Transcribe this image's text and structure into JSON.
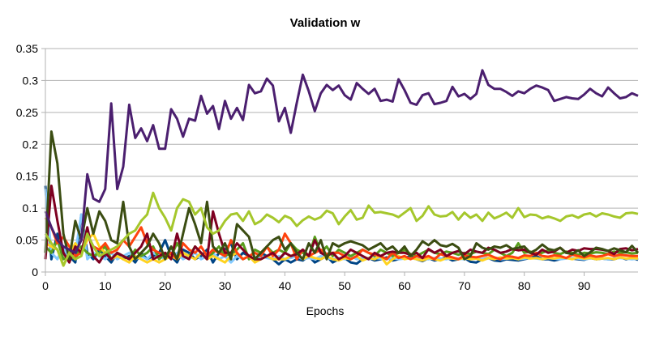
{
  "chart_data": {
    "type": "line",
    "title": "Validation w",
    "xlabel": "Epochs",
    "ylabel": "",
    "xlim": [
      0,
      99
    ],
    "ylim": [
      0,
      0.35
    ],
    "x_ticks": [
      "0",
      "10",
      "20",
      "30",
      "40",
      "50",
      "60",
      "70",
      "80",
      "90"
    ],
    "x_tick_values": [
      0,
      10,
      20,
      30,
      40,
      50,
      60,
      70,
      80,
      90
    ],
    "y_ticks": [
      "0",
      "0.05",
      "0.1",
      "0.15",
      "0.2",
      "0.25",
      "0.3",
      "0.35"
    ],
    "y_tick_values": [
      0,
      0.05,
      0.1,
      0.15,
      0.2,
      0.25,
      0.3,
      0.35
    ],
    "grid": "horizontal",
    "legend": "none",
    "series": [
      {
        "color": "#4b1f6f",
        "values": [
          0.095,
          0.07,
          0.05,
          0.04,
          0.035,
          0.03,
          0.05,
          0.153,
          0.115,
          0.11,
          0.13,
          0.264,
          0.13,
          0.165,
          0.262,
          0.21,
          0.225,
          0.205,
          0.23,
          0.193,
          0.193,
          0.255,
          0.24,
          0.212,
          0.24,
          0.237,
          0.276,
          0.248,
          0.26,
          0.224,
          0.268,
          0.24,
          0.257,
          0.238,
          0.293,
          0.28,
          0.283,
          0.303,
          0.292,
          0.236,
          0.257,
          0.218,
          0.265,
          0.309,
          0.283,
          0.252,
          0.28,
          0.293,
          0.285,
          0.292,
          0.277,
          0.27,
          0.296,
          0.287,
          0.279,
          0.287,
          0.268,
          0.27,
          0.267,
          0.302,
          0.285,
          0.265,
          0.262,
          0.277,
          0.28,
          0.263,
          0.265,
          0.268,
          0.29,
          0.275,
          0.279,
          0.271,
          0.279,
          0.316,
          0.293,
          0.287,
          0.287,
          0.282,
          0.276,
          0.283,
          0.28,
          0.287,
          0.292,
          0.289,
          0.285,
          0.268,
          0.271,
          0.274,
          0.272,
          0.271,
          0.278,
          0.287,
          0.28,
          0.275,
          0.289,
          0.28,
          0.272,
          0.274,
          0.28,
          0.276
        ]
      },
      {
        "color": "#a5c72c",
        "values": [
          0.06,
          0.045,
          0.035,
          0.01,
          0.03,
          0.02,
          0.025,
          0.06,
          0.04,
          0.025,
          0.03,
          0.035,
          0.04,
          0.05,
          0.06,
          0.065,
          0.08,
          0.09,
          0.124,
          0.1,
          0.085,
          0.065,
          0.1,
          0.114,
          0.11,
          0.09,
          0.1,
          0.07,
          0.06,
          0.065,
          0.08,
          0.09,
          0.092,
          0.08,
          0.095,
          0.075,
          0.08,
          0.09,
          0.085,
          0.078,
          0.088,
          0.084,
          0.072,
          0.081,
          0.087,
          0.082,
          0.086,
          0.096,
          0.092,
          0.075,
          0.087,
          0.097,
          0.082,
          0.085,
          0.104,
          0.093,
          0.094,
          0.092,
          0.09,
          0.086,
          0.093,
          0.1,
          0.08,
          0.088,
          0.103,
          0.09,
          0.087,
          0.088,
          0.094,
          0.082,
          0.093,
          0.085,
          0.09,
          0.08,
          0.093,
          0.084,
          0.088,
          0.093,
          0.085,
          0.1,
          0.086,
          0.09,
          0.089,
          0.084,
          0.087,
          0.084,
          0.08,
          0.087,
          0.089,
          0.085,
          0.09,
          0.092,
          0.087,
          0.092,
          0.09,
          0.087,
          0.085,
          0.092,
          0.093,
          0.091
        ]
      },
      {
        "color": "#3b4d12",
        "values": [
          0.03,
          0.22,
          0.17,
          0.06,
          0.02,
          0.08,
          0.05,
          0.1,
          0.06,
          0.095,
          0.08,
          0.05,
          0.045,
          0.11,
          0.04,
          0.02,
          0.03,
          0.04,
          0.06,
          0.045,
          0.02,
          0.04,
          0.02,
          0.06,
          0.1,
          0.075,
          0.045,
          0.11,
          0.04,
          0.03,
          0.045,
          0.02,
          0.075,
          0.065,
          0.055,
          0.02,
          0.03,
          0.04,
          0.05,
          0.055,
          0.035,
          0.045,
          0.03,
          0.02,
          0.045,
          0.03,
          0.05,
          0.02,
          0.045,
          0.04,
          0.045,
          0.048,
          0.045,
          0.042,
          0.035,
          0.04,
          0.045,
          0.035,
          0.04,
          0.03,
          0.04,
          0.025,
          0.035,
          0.048,
          0.042,
          0.05,
          0.042,
          0.04,
          0.044,
          0.038,
          0.02,
          0.025,
          0.045,
          0.038,
          0.035,
          0.04,
          0.038,
          0.042,
          0.036,
          0.038,
          0.04,
          0.03,
          0.035,
          0.043,
          0.036,
          0.034,
          0.038,
          0.03,
          0.028,
          0.034,
          0.025,
          0.031,
          0.038,
          0.036,
          0.033,
          0.037,
          0.034,
          0.031,
          0.041,
          0.03
        ]
      },
      {
        "color": "#7e0021",
        "values": [
          0.02,
          0.135,
          0.08,
          0.03,
          0.015,
          0.04,
          0.03,
          0.07,
          0.025,
          0.015,
          0.03,
          0.02,
          0.03,
          0.025,
          0.02,
          0.03,
          0.04,
          0.06,
          0.02,
          0.025,
          0.03,
          0.02,
          0.06,
          0.025,
          0.02,
          0.04,
          0.03,
          0.02,
          0.095,
          0.06,
          0.03,
          0.03,
          0.045,
          0.035,
          0.025,
          0.02,
          0.02,
          0.025,
          0.03,
          0.02,
          0.03,
          0.025,
          0.028,
          0.035,
          0.025,
          0.05,
          0.03,
          0.025,
          0.03,
          0.02,
          0.025,
          0.035,
          0.03,
          0.025,
          0.02,
          0.03,
          0.025,
          0.03,
          0.032,
          0.03,
          0.03,
          0.027,
          0.03,
          0.022,
          0.036,
          0.03,
          0.035,
          0.025,
          0.03,
          0.033,
          0.028,
          0.035,
          0.032,
          0.03,
          0.038,
          0.035,
          0.03,
          0.032,
          0.036,
          0.034,
          0.035,
          0.03,
          0.027,
          0.035,
          0.03,
          0.032,
          0.038,
          0.03,
          0.035,
          0.033,
          0.037,
          0.036,
          0.036,
          0.035,
          0.033,
          0.028,
          0.036,
          0.037,
          0.034,
          0.036
        ]
      },
      {
        "color": "#ff420e",
        "values": [
          0.085,
          0.07,
          0.045,
          0.055,
          0.04,
          0.025,
          0.03,
          0.06,
          0.04,
          0.035,
          0.045,
          0.03,
          0.035,
          0.05,
          0.04,
          0.055,
          0.07,
          0.045,
          0.035,
          0.03,
          0.025,
          0.03,
          0.02,
          0.045,
          0.035,
          0.03,
          0.04,
          0.025,
          0.035,
          0.03,
          0.025,
          0.05,
          0.03,
          0.02,
          0.025,
          0.03,
          0.025,
          0.04,
          0.025,
          0.035,
          0.06,
          0.045,
          0.02,
          0.035,
          0.025,
          0.03,
          0.035,
          0.028,
          0.03,
          0.03,
          0.025,
          0.02,
          0.025,
          0.035,
          0.03,
          0.027,
          0.025,
          0.02,
          0.03,
          0.022,
          0.025,
          0.02,
          0.025,
          0.022,
          0.025,
          0.02,
          0.028,
          0.025,
          0.023,
          0.02,
          0.026,
          0.024,
          0.023,
          0.025,
          0.027,
          0.023,
          0.02,
          0.025,
          0.024,
          0.022,
          0.026,
          0.025,
          0.03,
          0.025,
          0.024,
          0.026,
          0.025,
          0.022,
          0.027,
          0.025,
          0.023,
          0.026,
          0.024,
          0.025,
          0.028,
          0.025,
          0.027,
          0.026,
          0.025,
          0.025
        ]
      },
      {
        "color": "#ffd320",
        "values": [
          0.045,
          0.04,
          0.035,
          0.01,
          0.03,
          0.045,
          0.03,
          0.05,
          0.06,
          0.04,
          0.03,
          0.02,
          0.025,
          0.02,
          0.015,
          0.025,
          0.02,
          0.015,
          0.02,
          0.015,
          0.02,
          0.025,
          0.02,
          0.03,
          0.025,
          0.02,
          0.03,
          0.02,
          0.025,
          0.02,
          0.015,
          0.025,
          0.03,
          0.02,
          0.025,
          0.015,
          0.02,
          0.025,
          0.02,
          0.02,
          0.02,
          0.025,
          0.03,
          0.02,
          0.025,
          0.022,
          0.02,
          0.025,
          0.02,
          0.018,
          0.022,
          0.02,
          0.025,
          0.018,
          0.022,
          0.02,
          0.025,
          0.012,
          0.02,
          0.025,
          0.02,
          0.022,
          0.02,
          0.018,
          0.022,
          0.02,
          0.018,
          0.022,
          0.021,
          0.02,
          0.022,
          0.02,
          0.021,
          0.018,
          0.022,
          0.02,
          0.023,
          0.021,
          0.022,
          0.02,
          0.023,
          0.021,
          0.022,
          0.02,
          0.022,
          0.021,
          0.023,
          0.022,
          0.02,
          0.023,
          0.021,
          0.022,
          0.02,
          0.021,
          0.022,
          0.02,
          0.023,
          0.021,
          0.022,
          0.021
        ]
      },
      {
        "color": "#579d1c",
        "values": [
          0.04,
          0.03,
          0.05,
          0.02,
          0.025,
          0.02,
          0.04,
          0.03,
          0.025,
          0.03,
          0.04,
          0.02,
          0.03,
          0.025,
          0.02,
          0.035,
          0.025,
          0.03,
          0.04,
          0.02,
          0.03,
          0.025,
          0.045,
          0.03,
          0.025,
          0.04,
          0.03,
          0.02,
          0.03,
          0.04,
          0.025,
          0.03,
          0.035,
          0.045,
          0.02,
          0.035,
          0.03,
          0.04,
          0.03,
          0.035,
          0.03,
          0.045,
          0.035,
          0.03,
          0.025,
          0.055,
          0.03,
          0.04,
          0.025,
          0.035,
          0.03,
          0.025,
          0.03,
          0.035,
          0.03,
          0.025,
          0.035,
          0.03,
          0.025,
          0.03,
          0.035,
          0.028,
          0.025,
          0.03,
          0.035,
          0.03,
          0.028,
          0.032,
          0.03,
          0.027,
          0.03,
          0.028,
          0.032,
          0.03,
          0.028,
          0.035,
          0.03,
          0.025,
          0.03,
          0.045,
          0.03,
          0.032,
          0.028,
          0.03,
          0.034,
          0.03,
          0.028,
          0.032,
          0.03,
          0.027,
          0.03,
          0.029,
          0.031,
          0.03,
          0.028,
          0.032,
          0.03,
          0.031,
          0.029,
          0.03
        ]
      },
      {
        "color": "#83caff",
        "values": [
          0.13,
          0.03,
          0.02,
          0.04,
          0.02,
          0.03,
          0.09,
          0.02,
          0.03,
          0.025,
          0.02,
          0.03,
          0.02,
          0.025,
          0.03,
          0.02,
          0.025,
          0.02,
          0.03,
          0.025,
          0.02,
          0.025,
          0.03,
          0.02,
          0.025,
          0.03,
          0.02,
          0.025,
          0.03,
          0.02,
          0.025,
          0.015,
          0.025,
          0.02,
          0.025,
          0.02,
          0.025,
          0.022,
          0.02,
          0.025,
          0.02,
          0.022,
          0.025,
          0.02,
          0.022,
          0.02,
          0.025,
          0.022,
          0.02,
          0.022,
          0.02,
          0.025,
          0.02,
          0.022,
          0.02,
          0.022,
          0.021,
          0.02,
          0.022,
          0.02,
          0.021,
          0.022,
          0.02,
          0.021,
          0.02,
          0.022,
          0.021,
          0.02,
          0.022,
          0.021,
          0.02,
          0.022,
          0.021,
          0.02,
          0.021,
          0.022,
          0.02,
          0.021,
          0.022,
          0.02,
          0.021,
          0.022,
          0.021,
          0.02,
          0.022,
          0.021,
          0.02,
          0.021,
          0.022,
          0.021,
          0.02,
          0.021,
          0.022,
          0.021,
          0.02,
          0.021,
          0.022,
          0.021,
          0.02,
          0.021
        ]
      },
      {
        "color": "#004586",
        "values": [
          0.135,
          0.02,
          0.06,
          0.03,
          0.025,
          0.015,
          0.09,
          0.03,
          0.02,
          0.035,
          0.025,
          0.015,
          0.03,
          0.02,
          0.025,
          0.015,
          0.03,
          0.02,
          0.025,
          0.03,
          0.05,
          0.025,
          0.015,
          0.035,
          0.03,
          0.02,
          0.025,
          0.035,
          0.015,
          0.03,
          0.035,
          0.045,
          0.02,
          0.03,
          0.025,
          0.02,
          0.03,
          0.025,
          0.02,
          0.012,
          0.02,
          0.015,
          0.02,
          0.018,
          0.025,
          0.015,
          0.02,
          0.025,
          0.015,
          0.02,
          0.022,
          0.015,
          0.013,
          0.02,
          0.022,
          0.018,
          0.02,
          0.023,
          0.018,
          0.02,
          0.022,
          0.025,
          0.02,
          0.017,
          0.022,
          0.018,
          0.02,
          0.023,
          0.018,
          0.02,
          0.022,
          0.016,
          0.015,
          0.02,
          0.022,
          0.018,
          0.017,
          0.02,
          0.019,
          0.018,
          0.02,
          0.022,
          0.025,
          0.02,
          0.02,
          0.018,
          0.02,
          0.022,
          0.021,
          0.02,
          0.019,
          0.022,
          0.02,
          0.021,
          0.02,
          0.02,
          0.023,
          0.02,
          0.022,
          0.019
        ]
      }
    ]
  }
}
